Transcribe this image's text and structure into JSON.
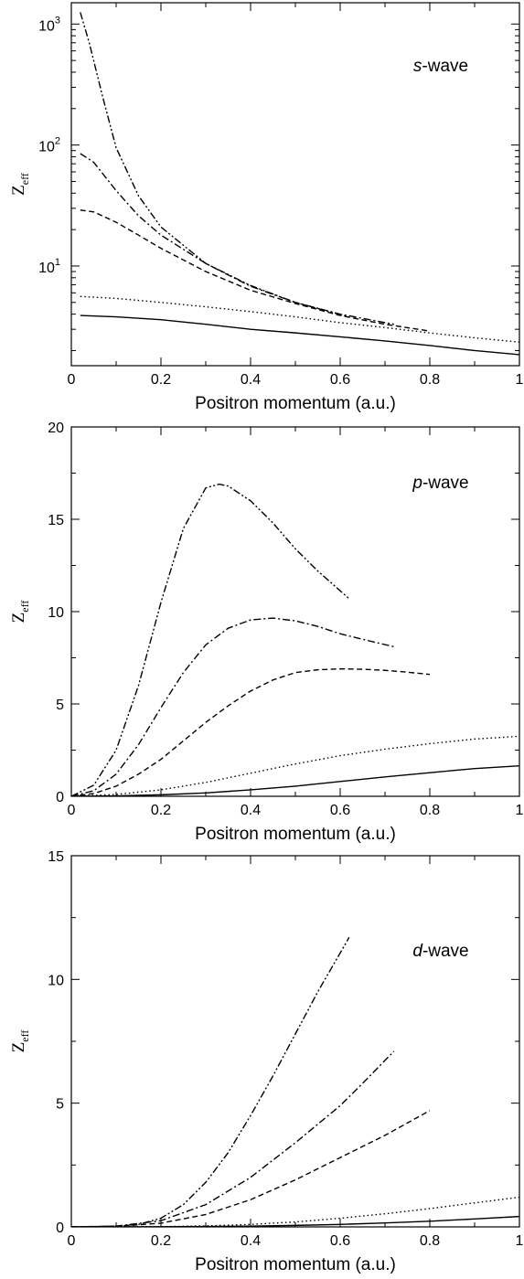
{
  "chart_data": [
    {
      "type": "line",
      "annotation": {
        "italic": "s",
        "rest": "-wave"
      },
      "xlabel": "Positron momentum (a.u.)",
      "ylabel": {
        "main": "Z",
        "sub": "eff"
      },
      "xlim": [
        0,
        1
      ],
      "ylim": [
        1.5,
        1500
      ],
      "yscale": "log",
      "x_ticks": [
        0,
        0.2,
        0.4,
        0.6,
        0.8,
        1
      ],
      "x_tick_labels": [
        "0",
        "0.2",
        "0.4",
        "0.6",
        "0.8",
        "1"
      ],
      "y_ticks": [
        10,
        100,
        1000
      ],
      "y_tick_labels": [
        {
          "base": "10",
          "exp": "1"
        },
        {
          "base": "10",
          "exp": "2"
        },
        {
          "base": "10",
          "exp": "3"
        }
      ],
      "series": [
        {
          "style": "solid",
          "x": [
            0.02,
            0.1,
            0.2,
            0.3,
            0.4,
            0.5,
            0.6,
            0.7,
            0.8,
            0.9,
            1.0
          ],
          "y": [
            3.9,
            3.8,
            3.6,
            3.3,
            3.0,
            2.8,
            2.6,
            2.4,
            2.2,
            2.0,
            1.85
          ]
        },
        {
          "style": "dotted",
          "x": [
            0.02,
            0.1,
            0.2,
            0.3,
            0.4,
            0.5,
            0.6,
            0.7,
            0.8,
            0.9,
            1.0
          ],
          "y": [
            5.6,
            5.4,
            5.0,
            4.6,
            4.2,
            3.8,
            3.4,
            3.1,
            2.8,
            2.55,
            2.35
          ]
        },
        {
          "style": "dashed",
          "x": [
            0.02,
            0.05,
            0.1,
            0.15,
            0.2,
            0.3,
            0.4,
            0.5,
            0.6,
            0.7,
            0.8
          ],
          "y": [
            29,
            28,
            23,
            18,
            14,
            9,
            6.3,
            4.9,
            3.9,
            3.3,
            2.9
          ]
        },
        {
          "style": "dashdot",
          "x": [
            0.02,
            0.05,
            0.1,
            0.15,
            0.2,
            0.3,
            0.4,
            0.5,
            0.6,
            0.72
          ],
          "y": [
            85,
            72,
            42,
            26,
            18,
            10.5,
            6.8,
            5.0,
            4.0,
            3.3
          ]
        },
        {
          "style": "dashdotdot",
          "x": [
            0.02,
            0.04,
            0.07,
            0.1,
            0.15,
            0.2,
            0.3,
            0.4,
            0.5,
            0.62
          ],
          "y": [
            1250,
            700,
            250,
            95,
            38,
            21,
            10.5,
            6.9,
            5.0,
            3.8
          ]
        }
      ]
    },
    {
      "type": "line",
      "annotation": {
        "italic": "p",
        "rest": "-wave"
      },
      "xlabel": "Positron momentum (a.u.)",
      "ylabel": {
        "main": "Z",
        "sub": "eff"
      },
      "xlim": [
        0,
        1
      ],
      "ylim": [
        0,
        20
      ],
      "yscale": "linear",
      "x_ticks": [
        0,
        0.2,
        0.4,
        0.6,
        0.8,
        1
      ],
      "x_tick_labels": [
        "0",
        "0.2",
        "0.4",
        "0.6",
        "0.8",
        "1"
      ],
      "y_ticks": [
        0,
        5,
        10,
        15,
        20
      ],
      "y_tick_labels": [
        "0",
        "5",
        "10",
        "15",
        "20"
      ],
      "series": [
        {
          "style": "solid",
          "x": [
            0,
            0.1,
            0.2,
            0.3,
            0.4,
            0.5,
            0.6,
            0.7,
            0.8,
            0.9,
            1.0
          ],
          "y": [
            0,
            0.02,
            0.08,
            0.18,
            0.35,
            0.55,
            0.8,
            1.05,
            1.28,
            1.5,
            1.65
          ]
        },
        {
          "style": "dotted",
          "x": [
            0,
            0.1,
            0.2,
            0.3,
            0.4,
            0.5,
            0.6,
            0.7,
            0.8,
            0.9,
            1.0
          ],
          "y": [
            0,
            0.1,
            0.35,
            0.75,
            1.25,
            1.75,
            2.2,
            2.55,
            2.85,
            3.1,
            3.25
          ]
        },
        {
          "style": "dashed",
          "x": [
            0,
            0.05,
            0.1,
            0.15,
            0.2,
            0.25,
            0.3,
            0.35,
            0.4,
            0.45,
            0.5,
            0.55,
            0.6,
            0.65,
            0.7,
            0.75,
            0.8
          ],
          "y": [
            0,
            0.15,
            0.55,
            1.2,
            2.0,
            3.0,
            4.0,
            4.9,
            5.7,
            6.3,
            6.7,
            6.85,
            6.9,
            6.88,
            6.82,
            6.72,
            6.6
          ]
        },
        {
          "style": "dashdot",
          "x": [
            0,
            0.05,
            0.1,
            0.15,
            0.2,
            0.25,
            0.3,
            0.35,
            0.4,
            0.45,
            0.5,
            0.55,
            0.6,
            0.65,
            0.72
          ],
          "y": [
            0,
            0.3,
            1.2,
            2.8,
            4.8,
            6.7,
            8.2,
            9.1,
            9.55,
            9.65,
            9.5,
            9.2,
            8.8,
            8.5,
            8.1
          ]
        },
        {
          "style": "dashdotdot",
          "x": [
            0,
            0.05,
            0.1,
            0.15,
            0.2,
            0.25,
            0.3,
            0.33,
            0.35,
            0.4,
            0.45,
            0.5,
            0.55,
            0.62
          ],
          "y": [
            0,
            0.6,
            2.5,
            6.0,
            10.5,
            14.5,
            16.7,
            16.9,
            16.8,
            16.0,
            14.8,
            13.4,
            12.2,
            10.7
          ]
        }
      ]
    },
    {
      "type": "line",
      "annotation": {
        "italic": "d",
        "rest": "-wave"
      },
      "xlabel": "Positron momentum (a.u.)",
      "ylabel": {
        "main": "Z",
        "sub": "eff"
      },
      "xlim": [
        0,
        1
      ],
      "ylim": [
        0,
        15
      ],
      "yscale": "linear",
      "x_ticks": [
        0,
        0.2,
        0.4,
        0.6,
        0.8,
        1
      ],
      "x_tick_labels": [
        "0",
        "0.2",
        "0.4",
        "0.6",
        "0.8",
        "1"
      ],
      "y_ticks": [
        0,
        5,
        10,
        15
      ],
      "y_tick_labels": [
        "0",
        "5",
        "10",
        "15"
      ],
      "series": [
        {
          "style": "solid",
          "x": [
            0,
            0.2,
            0.4,
            0.5,
            0.6,
            0.7,
            0.8,
            0.9,
            1.0
          ],
          "y": [
            0,
            0.005,
            0.03,
            0.06,
            0.1,
            0.16,
            0.23,
            0.32,
            0.42
          ]
        },
        {
          "style": "dotted",
          "x": [
            0,
            0.2,
            0.3,
            0.4,
            0.5,
            0.6,
            0.7,
            0.8,
            0.9,
            1.0
          ],
          "y": [
            0,
            0.01,
            0.04,
            0.1,
            0.2,
            0.35,
            0.53,
            0.74,
            0.97,
            1.2
          ]
        },
        {
          "style": "dashed",
          "x": [
            0,
            0.1,
            0.2,
            0.3,
            0.4,
            0.5,
            0.6,
            0.7,
            0.8
          ],
          "y": [
            0,
            0.02,
            0.15,
            0.5,
            1.1,
            1.9,
            2.8,
            3.7,
            4.7
          ]
        },
        {
          "style": "dashdot",
          "x": [
            0,
            0.1,
            0.2,
            0.3,
            0.4,
            0.5,
            0.6,
            0.65,
            0.72
          ],
          "y": [
            0,
            0.03,
            0.25,
            0.9,
            2.0,
            3.4,
            4.9,
            5.8,
            7.1
          ]
        },
        {
          "style": "dashdotdot",
          "x": [
            0,
            0.1,
            0.15,
            0.2,
            0.25,
            0.3,
            0.35,
            0.4,
            0.45,
            0.5,
            0.55,
            0.62
          ],
          "y": [
            0,
            0.03,
            0.1,
            0.35,
            0.9,
            1.8,
            3.0,
            4.5,
            6.1,
            7.8,
            9.5,
            11.7
          ]
        }
      ]
    }
  ]
}
